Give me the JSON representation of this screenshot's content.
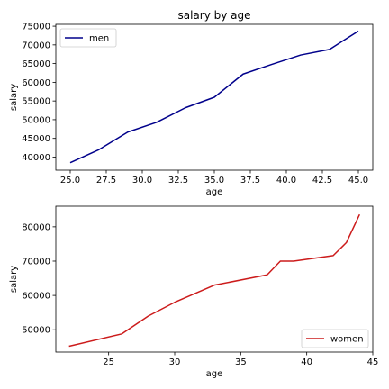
{
  "chart_data": [
    {
      "type": "line",
      "title": "salary by age",
      "xlabel": "age",
      "ylabel": "salary",
      "xlim": [
        24.0,
        46.0
      ],
      "ylim": [
        36500,
        75500
      ],
      "xticks": [
        25.0,
        27.5,
        30.0,
        32.5,
        35.0,
        37.5,
        40.0,
        42.5,
        45.0
      ],
      "xtick_labels": [
        "25.0",
        "27.5",
        "30.0",
        "32.5",
        "35.0",
        "37.5",
        "40.0",
        "42.5",
        "45.0"
      ],
      "yticks": [
        40000,
        45000,
        50000,
        55000,
        60000,
        65000,
        70000,
        75000
      ],
      "ytick_labels": [
        "40000",
        "45000",
        "50000",
        "55000",
        "60000",
        "65000",
        "70000",
        "75000"
      ],
      "grid": false,
      "legend_position": "upper-left",
      "series": [
        {
          "name": "men",
          "color": "#00008b",
          "x": [
            25,
            27,
            29,
            31,
            33,
            35,
            37,
            39,
            41,
            43,
            45
          ],
          "y": [
            38500,
            42000,
            46700,
            49300,
            53200,
            56000,
            62200,
            64800,
            67300,
            68800,
            73700
          ]
        }
      ]
    },
    {
      "type": "line",
      "title": "",
      "xlabel": "age",
      "ylabel": "salary",
      "xlim": [
        21.0,
        45.0
      ],
      "ylim": [
        43500,
        86000
      ],
      "xticks": [
        25,
        30,
        35,
        40,
        45
      ],
      "xtick_labels": [
        "25",
        "30",
        "35",
        "40",
        "45"
      ],
      "yticks": [
        50000,
        60000,
        70000,
        80000
      ],
      "ytick_labels": [
        "50000",
        "60000",
        "70000",
        "80000"
      ],
      "grid": false,
      "legend_position": "lower-right",
      "series": [
        {
          "name": "women",
          "color": "#cc1b1b",
          "x": [
            22,
            26,
            28,
            30,
            33,
            37,
            38,
            39,
            42,
            43,
            44
          ],
          "y": [
            45200,
            48800,
            54000,
            58000,
            63000,
            66000,
            70000,
            70000,
            71600,
            75400,
            83600
          ]
        }
      ]
    }
  ]
}
